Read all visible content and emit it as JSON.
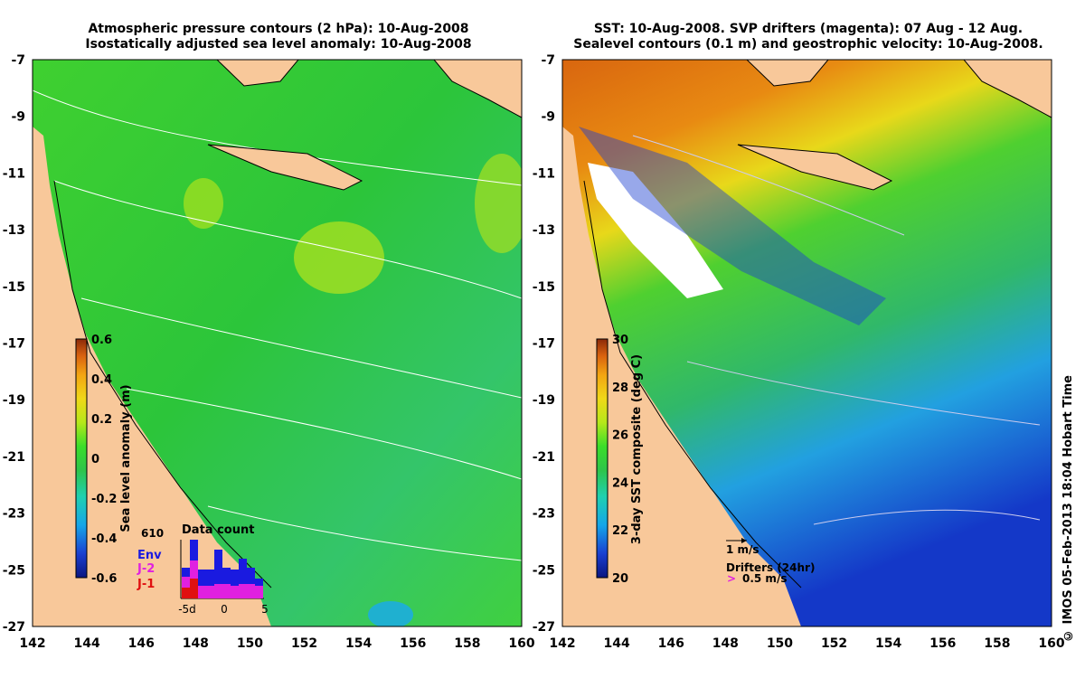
{
  "left_panel": {
    "title_line1": "Atmospheric pressure contours (2 hPa): 10-Aug-2008",
    "title_line2": "Isostatically adjusted sea level anomaly: 10-Aug-2008",
    "x_ticks": [
      "142",
      "144",
      "146",
      "148",
      "150",
      "152",
      "154",
      "156",
      "158",
      "160"
    ],
    "y_ticks": [
      "-7",
      "-9",
      "-11",
      "-13",
      "-15",
      "-17",
      "-19",
      "-21",
      "-23",
      "-25",
      "-27"
    ],
    "colorbar": {
      "label": "Sea level anomaly (m)",
      "ticks": [
        "0.6",
        "0.4",
        "0.2",
        "0",
        "-0.2",
        "-0.4",
        "-0.6"
      ],
      "colors": [
        "#0b1680",
        "#1a3fd1",
        "#16a6e8",
        "#1fd0b0",
        "#2ec44a",
        "#3bde2a",
        "#b6e81a",
        "#f0d818",
        "#f3a512",
        "#d9620f",
        "#8b2a0a"
      ]
    },
    "data_count": {
      "title": "Data count",
      "max_label": "610",
      "legend": [
        {
          "name": "Env",
          "color": "#1a1ae0"
        },
        {
          "name": "J-2",
          "color": "#e020e0"
        },
        {
          "name": "J-1",
          "color": "#e01010"
        }
      ],
      "x_ticks": [
        "-5d",
        "0",
        "5"
      ]
    }
  },
  "right_panel": {
    "title_line1": "SST: 10-Aug-2008. SVP drifters (magenta): 07 Aug - 12 Aug.",
    "title_line2": "Sealevel contours (0.1 m) and geostrophic velocity: 10-Aug-2008.",
    "x_ticks": [
      "142",
      "144",
      "146",
      "148",
      "150",
      "152",
      "154",
      "156",
      "158",
      "160"
    ],
    "y_ticks": [
      "-7",
      "-9",
      "-11",
      "-13",
      "-15",
      "-17",
      "-19",
      "-21",
      "-23",
      "-25",
      "-27"
    ],
    "colorbar": {
      "label": "3-day SST composite (deg C)",
      "ticks": [
        "30",
        "28",
        "26",
        "24",
        "22",
        "20"
      ],
      "colors": [
        "#0b1680",
        "#1a3fd1",
        "#16a6e8",
        "#1fd0b0",
        "#2ec44a",
        "#3bde2a",
        "#b6e81a",
        "#f0d818",
        "#f3a512",
        "#d9620f",
        "#8b2a0a"
      ]
    },
    "velocity_key": "1 m/s",
    "drifter_key_title": "Drifters (24hr)",
    "drifter_key_speed": "0.5 m/s"
  },
  "footer": "© IMOS 05-Feb-2013 18:04 Hobart Time",
  "land_color": "#f8c89a"
}
